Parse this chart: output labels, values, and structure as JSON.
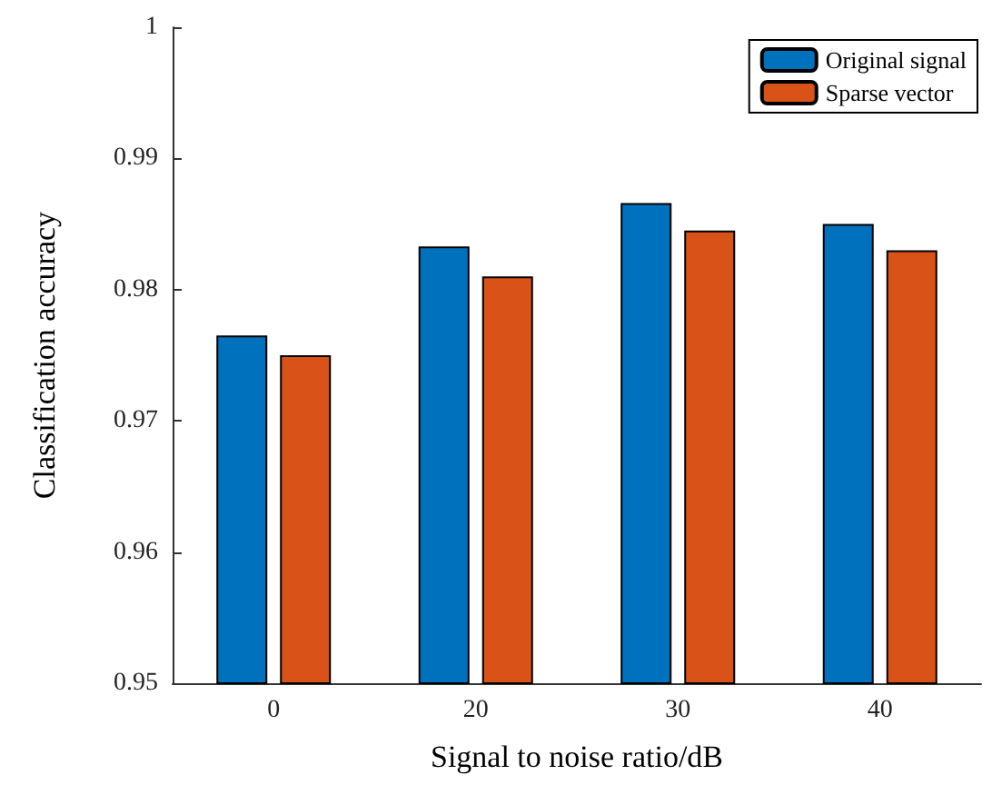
{
  "chart_data": {
    "type": "bar",
    "xlabel": "Signal to noise ratio/dB",
    "ylabel": "Classification accuracy",
    "categories": [
      "0",
      "20",
      "30",
      "40"
    ],
    "series": [
      {
        "name": "Original signal",
        "color": "#0072bd",
        "values": [
          0.9765,
          0.9833,
          0.9866,
          0.985
        ]
      },
      {
        "name": "Sparse vector",
        "color": "#d95319",
        "values": [
          0.975,
          0.981,
          0.9845,
          0.983
        ]
      }
    ],
    "ylim": [
      0.95,
      1
    ],
    "yticks": [
      0.95,
      0.96,
      0.97,
      0.98,
      0.99,
      1
    ],
    "grid": false,
    "legend": "top right"
  }
}
